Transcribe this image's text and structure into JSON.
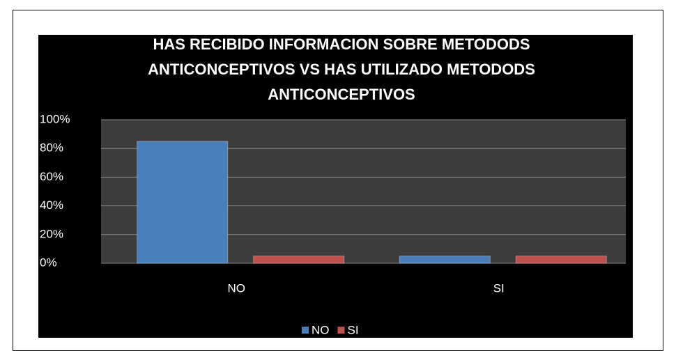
{
  "chart_data": {
    "type": "bar",
    "title": "HAS RECIBIDO INFORMACION SOBRE METODODS ANTICONCEPTIVOS VS  HAS UTILIZADO METODODS ANTICONCEPTIVOS",
    "categories": [
      "NO",
      "SI"
    ],
    "series": [
      {
        "name": "NO",
        "color": "#4a7ebb",
        "values": [
          85,
          5
        ]
      },
      {
        "name": "SI",
        "color": "#c0504d",
        "values": [
          5,
          5
        ]
      }
    ],
    "ylim": [
      0,
      100
    ],
    "yticks": [
      {
        "value": 0,
        "label": "0%"
      },
      {
        "value": 20,
        "label": "20%"
      },
      {
        "value": 40,
        "label": "40%"
      },
      {
        "value": 60,
        "label": "60%"
      },
      {
        "value": 80,
        "label": "80%"
      },
      {
        "value": 100,
        "label": "100%"
      }
    ],
    "grid": true,
    "legend": "bottom"
  }
}
